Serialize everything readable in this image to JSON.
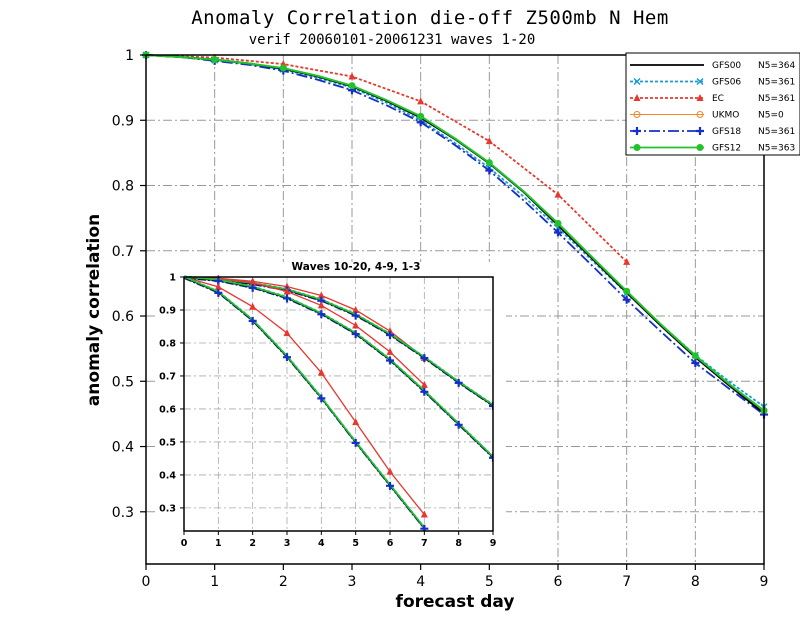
{
  "chart_data": [
    {
      "type": "line",
      "title": "Anomaly Correlation die-off   Z500mb N Hem",
      "subtitle": "verif 20060101-20061231  waves 1-20",
      "xlabel": "forecast day",
      "ylabel": "anomaly correlation",
      "xlim": [
        0,
        9
      ],
      "ylim": [
        0.22,
        1.0
      ],
      "xticks": [
        "0",
        "1",
        "2",
        "3",
        "4",
        "5",
        "6",
        "7",
        "8",
        "9"
      ],
      "yticks": [
        "0.3",
        "0.4",
        "0.5",
        "0.6",
        "0.7",
        "0.8",
        "0.9",
        "1"
      ],
      "grid": true,
      "legend_position": "top-right",
      "series": [
        {
          "name": "GFS00",
          "n": "N5=364",
          "color": "#000000",
          "dash": "",
          "marker": "none",
          "x": [
            0,
            0.5,
            1,
            1.5,
            2,
            2.5,
            3,
            3.5,
            4,
            4.5,
            5,
            5.5,
            6,
            6.5,
            7,
            7.5,
            8,
            8.5,
            9
          ],
          "y": [
            1.0,
            0.997,
            0.993,
            0.987,
            0.979,
            0.967,
            0.952,
            0.93,
            0.904,
            0.871,
            0.834,
            0.79,
            0.739,
            0.688,
            0.636,
            0.585,
            0.537,
            0.493,
            0.451
          ]
        },
        {
          "name": "GFS06",
          "n": "N5=361",
          "color": "#1a9bd7",
          "dash": "3,2",
          "marker": "x",
          "x": [
            0,
            0.5,
            1,
            1.5,
            2,
            2.5,
            3,
            3.5,
            4,
            4.5,
            5,
            5.5,
            6,
            6.5,
            7,
            7.5,
            8,
            8.5,
            9
          ],
          "y": [
            1.0,
            0.997,
            0.992,
            0.986,
            0.978,
            0.965,
            0.95,
            0.927,
            0.9,
            0.865,
            0.827,
            0.783,
            0.735,
            0.685,
            0.635,
            0.587,
            0.54,
            0.499,
            0.461
          ]
        },
        {
          "name": "EC",
          "n": "N5=361",
          "color": "#e8372f",
          "dash": "3,2",
          "marker": "triangle",
          "x": [
            0,
            1,
            2,
            3,
            4,
            5,
            6,
            7
          ],
          "y": [
            1.0,
            0.996,
            0.986,
            0.967,
            0.929,
            0.868,
            0.786,
            0.683
          ]
        },
        {
          "name": "UKMO",
          "n": "N5=0",
          "color": "#f08a24",
          "dash": "",
          "marker": "circle-open",
          "x": [],
          "y": []
        },
        {
          "name": "GFS18",
          "n": "N5=361",
          "color": "#1530c8",
          "dash": "11,3,2,3",
          "marker": "plus",
          "x": [
            0,
            0.5,
            1,
            1.5,
            2,
            2.5,
            3,
            3.5,
            4,
            4.5,
            5,
            5.5,
            6,
            6.5,
            7,
            7.5,
            8,
            8.5,
            9
          ],
          "y": [
            1.0,
            0.997,
            0.991,
            0.985,
            0.976,
            0.962,
            0.946,
            0.923,
            0.897,
            0.862,
            0.823,
            0.777,
            0.728,
            0.677,
            0.625,
            0.576,
            0.528,
            0.488,
            0.449
          ]
        },
        {
          "name": "GFS12",
          "n": "N5=363",
          "color": "#22c32a",
          "dash": "",
          "marker": "dot",
          "x": [
            0,
            0.5,
            1,
            1.5,
            2,
            2.5,
            3,
            3.5,
            4,
            4.5,
            5,
            5.5,
            6,
            6.5,
            7,
            7.5,
            8,
            8.5,
            9
          ],
          "y": [
            1.0,
            0.997,
            0.993,
            0.987,
            0.98,
            0.968,
            0.953,
            0.931,
            0.906,
            0.872,
            0.835,
            0.791,
            0.742,
            0.69,
            0.638,
            0.587,
            0.539,
            0.495,
            0.455
          ]
        }
      ]
    },
    {
      "type": "line",
      "title": "Waves 10-20, 4-9, 1-3",
      "xlim": [
        0,
        9
      ],
      "ylim": [
        0.23,
        1.0
      ],
      "xticks": [
        "0",
        "1",
        "2",
        "3",
        "4",
        "5",
        "6",
        "7",
        "8",
        "9"
      ],
      "yticks": [
        "0.3",
        "0.4",
        "0.5",
        "0.6",
        "0.7",
        "0.8",
        "0.9",
        "1"
      ],
      "groups": [
        {
          "name": "waves 1-3",
          "gfs": {
            "x": [
              0,
              1,
              2,
              3,
              4,
              5,
              6,
              7,
              8,
              9
            ],
            "y": [
              1.0,
              0.993,
              0.981,
              0.962,
              0.931,
              0.886,
              0.827,
              0.757,
              0.682,
              0.612
            ]
          },
          "ec": {
            "x": [
              0,
              1,
              2,
              3,
              4,
              5,
              6,
              7
            ],
            "y": [
              1.0,
              0.996,
              0.987,
              0.971,
              0.944,
              0.9,
              0.836,
              0.755
            ]
          }
        },
        {
          "name": "waves 4-9",
          "gfs": {
            "x": [
              0,
              1,
              2,
              3,
              4,
              5,
              6,
              7,
              8,
              9
            ],
            "y": [
              1.0,
              0.991,
              0.97,
              0.938,
              0.89,
              0.83,
              0.75,
              0.655,
              0.555,
              0.455
            ]
          },
          "ec": {
            "x": [
              0,
              1,
              2,
              3,
              4,
              5,
              6,
              7
            ],
            "y": [
              1.0,
              0.995,
              0.982,
              0.956,
              0.914,
              0.853,
              0.773,
              0.673
            ]
          }
        },
        {
          "name": "waves 10-20",
          "gfs": {
            "x": [
              0,
              1,
              2,
              3,
              4,
              5,
              6,
              7
            ],
            "y": [
              1.0,
              0.955,
              0.87,
              0.76,
              0.635,
              0.5,
              0.37,
              0.24
            ]
          },
          "ec": {
            "x": [
              0,
              1,
              2,
              3,
              4,
              5,
              6,
              7
            ],
            "y": [
              1.0,
              0.97,
              0.91,
              0.83,
              0.71,
              0.56,
              0.41,
              0.28
            ]
          }
        }
      ]
    }
  ]
}
